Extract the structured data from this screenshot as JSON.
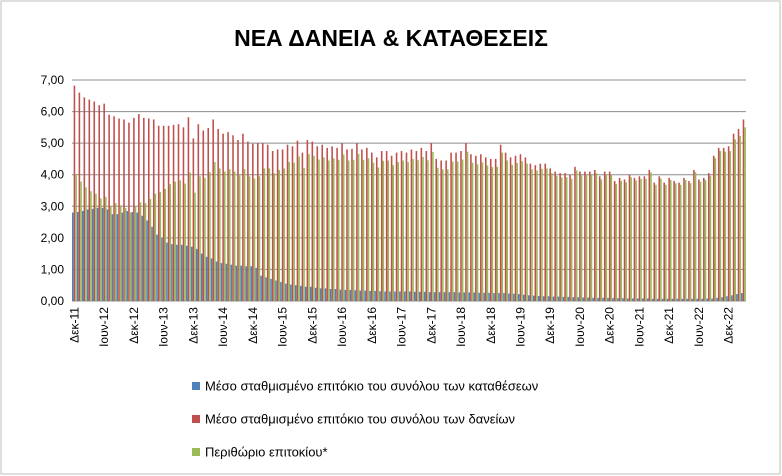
{
  "chart_data": {
    "type": "bar",
    "title": "ΝΕΑ ΔΑΝΕΙΑ & ΚΑΤΑΘΕΣΕΙΣ",
    "categories": [
      "Δεκ-11",
      null,
      null,
      null,
      null,
      null,
      "Ιουν-12",
      null,
      null,
      null,
      null,
      null,
      "Δεκ-12",
      null,
      null,
      null,
      null,
      null,
      "Ιουν-13",
      null,
      null,
      null,
      null,
      null,
      "Δεκ-13",
      null,
      null,
      null,
      null,
      null,
      "Ιουν-14",
      null,
      null,
      null,
      null,
      null,
      "Δεκ-14",
      null,
      null,
      null,
      null,
      null,
      "Ιουν-15",
      null,
      null,
      null,
      null,
      null,
      "Δεκ-15",
      null,
      null,
      null,
      null,
      null,
      "Ιουν-16",
      null,
      null,
      null,
      null,
      null,
      "Δεκ-16",
      null,
      null,
      null,
      null,
      null,
      "Ιουν-17",
      null,
      null,
      null,
      null,
      null,
      "Δεκ-17",
      null,
      null,
      null,
      null,
      null,
      "Ιουν-18",
      null,
      null,
      null,
      null,
      null,
      "Δεκ-18",
      null,
      null,
      null,
      null,
      null,
      "Ιουν-19",
      null,
      null,
      null,
      null,
      null,
      "Δεκ-19",
      null,
      null,
      null,
      null,
      null,
      "Ιουν-20",
      null,
      null,
      null,
      null,
      null,
      "Δεκ-20",
      null,
      null,
      null,
      null,
      null,
      "Ιουν-21",
      null,
      null,
      null,
      null,
      null,
      "Δεκ-21",
      null,
      null,
      null,
      null,
      null,
      "Ιουν-22",
      null,
      null,
      null,
      null,
      null,
      "Δεκ-22",
      null,
      null,
      null
    ],
    "series": [
      {
        "name": "Μέσο σταθμισμένο επιτόκιο του συνόλου των καταθέσεων",
        "color": "#4f81bd",
        "values": [
          2.8,
          2.82,
          2.85,
          2.9,
          2.92,
          2.95,
          2.95,
          2.9,
          2.75,
          2.75,
          2.8,
          2.85,
          2.82,
          2.8,
          2.7,
          2.55,
          2.35,
          2.1,
          2.0,
          1.85,
          1.8,
          1.78,
          1.78,
          1.75,
          1.72,
          1.65,
          1.5,
          1.4,
          1.35,
          1.25,
          1.2,
          1.18,
          1.15,
          1.12,
          1.12,
          1.1,
          1.1,
          1.05,
          0.8,
          0.75,
          0.7,
          0.65,
          0.6,
          0.55,
          0.52,
          0.5,
          0.48,
          0.45,
          0.45,
          0.42,
          0.4,
          0.4,
          0.38,
          0.38,
          0.36,
          0.35,
          0.35,
          0.34,
          0.33,
          0.33,
          0.32,
          0.32,
          0.31,
          0.3,
          0.3,
          0.3,
          0.3,
          0.3,
          0.3,
          0.29,
          0.29,
          0.29,
          0.28,
          0.28,
          0.28,
          0.28,
          0.28,
          0.28,
          0.27,
          0.27,
          0.27,
          0.27,
          0.26,
          0.26,
          0.26,
          0.25,
          0.25,
          0.25,
          0.24,
          0.23,
          0.22,
          0.2,
          0.18,
          0.17,
          0.16,
          0.15,
          0.15,
          0.14,
          0.14,
          0.13,
          0.13,
          0.12,
          0.12,
          0.11,
          0.11,
          0.1,
          0.1,
          0.1,
          0.1,
          0.09,
          0.09,
          0.09,
          0.08,
          0.08,
          0.08,
          0.08,
          0.08,
          0.07,
          0.07,
          0.07,
          0.07,
          0.07,
          0.07,
          0.07,
          0.07,
          0.07,
          0.07,
          0.07,
          0.08,
          0.08,
          0.1,
          0.12,
          0.15,
          0.18,
          0.22,
          0.25
        ]
      },
      {
        "name": "Μέσο σταθμισμένο επιτόκιο του συνόλου των δανείων",
        "color": "#c0504d",
        "values": [
          6.82,
          6.6,
          6.45,
          6.38,
          6.32,
          6.2,
          6.25,
          5.9,
          5.85,
          5.78,
          5.75,
          5.65,
          5.8,
          5.92,
          5.8,
          5.78,
          5.75,
          5.55,
          5.55,
          5.55,
          5.58,
          5.6,
          5.5,
          5.82,
          5.15,
          5.6,
          5.4,
          5.48,
          5.75,
          5.45,
          5.3,
          5.35,
          5.25,
          5.1,
          5.3,
          5.05,
          4.98,
          5.0,
          5.0,
          4.95,
          4.75,
          4.8,
          4.8,
          4.95,
          4.9,
          5.08,
          4.7,
          5.1,
          5.05,
          4.9,
          4.95,
          4.85,
          4.9,
          4.85,
          5.0,
          4.8,
          4.82,
          5.0,
          4.8,
          4.85,
          4.7,
          4.55,
          4.75,
          4.75,
          4.6,
          4.7,
          4.75,
          4.7,
          4.8,
          4.75,
          4.85,
          4.75,
          5.0,
          4.5,
          4.45,
          4.45,
          4.7,
          4.7,
          4.75,
          5.0,
          4.65,
          4.6,
          4.65,
          4.55,
          4.5,
          4.5,
          4.95,
          4.7,
          4.55,
          4.6,
          4.65,
          4.55,
          4.35,
          4.3,
          4.35,
          4.35,
          4.2,
          4.1,
          4.05,
          4.05,
          4.0,
          4.25,
          4.1,
          4.1,
          4.1,
          4.15,
          3.95,
          4.1,
          4.1,
          3.8,
          3.9,
          3.85,
          4.0,
          3.9,
          3.95,
          3.95,
          4.15,
          3.75,
          3.95,
          3.75,
          3.9,
          3.8,
          3.75,
          3.9,
          3.8,
          4.15,
          3.85,
          3.9,
          4.05,
          4.6,
          4.85,
          4.85,
          4.9,
          5.3,
          5.45,
          5.75
        ]
      },
      {
        "name": "Περιθώριο επιτοκίου*",
        "color": "#9bbb59",
        "values": [
          4.02,
          3.78,
          3.6,
          3.48,
          3.4,
          3.25,
          3.3,
          3.0,
          3.1,
          3.03,
          2.95,
          2.8,
          2.98,
          3.12,
          3.1,
          3.23,
          3.4,
          3.45,
          3.55,
          3.7,
          3.78,
          3.82,
          3.72,
          4.07,
          3.43,
          3.95,
          3.9,
          4.08,
          4.4,
          4.2,
          4.1,
          4.17,
          4.1,
          3.98,
          4.18,
          3.95,
          3.88,
          3.95,
          4.2,
          4.2,
          4.05,
          4.15,
          4.2,
          4.4,
          4.38,
          4.58,
          4.22,
          4.65,
          4.6,
          4.48,
          4.55,
          4.45,
          4.52,
          4.47,
          4.64,
          4.45,
          4.47,
          4.66,
          4.47,
          4.52,
          4.38,
          4.23,
          4.44,
          4.45,
          4.3,
          4.4,
          4.45,
          4.4,
          4.5,
          4.46,
          4.56,
          4.46,
          4.72,
          4.22,
          4.17,
          4.17,
          4.42,
          4.42,
          4.48,
          4.73,
          4.38,
          4.33,
          4.39,
          4.29,
          4.24,
          4.25,
          4.7,
          4.45,
          4.31,
          4.37,
          4.43,
          4.35,
          4.17,
          4.13,
          4.19,
          4.2,
          4.05,
          3.96,
          3.91,
          3.92,
          3.87,
          4.13,
          3.98,
          3.99,
          3.99,
          4.05,
          3.85,
          4.0,
          4.0,
          3.71,
          3.81,
          3.76,
          3.92,
          3.82,
          3.87,
          3.87,
          4.07,
          3.68,
          3.88,
          3.68,
          3.83,
          3.73,
          3.68,
          3.83,
          3.73,
          4.08,
          3.78,
          3.83,
          3.97,
          4.52,
          4.75,
          4.73,
          4.75,
          5.12,
          5.23,
          5.5
        ]
      }
    ],
    "ylim": [
      0,
      7
    ],
    "yticks": [
      {
        "value": 0,
        "label": "0,00"
      },
      {
        "value": 1,
        "label": "1,00"
      },
      {
        "value": 2,
        "label": "2,00"
      },
      {
        "value": 3,
        "label": "3,00"
      },
      {
        "value": 4,
        "label": "4,00"
      },
      {
        "value": 5,
        "label": "5,00"
      },
      {
        "value": 6,
        "label": "6,00"
      },
      {
        "value": 7,
        "label": "7,00"
      }
    ],
    "grid": true
  }
}
